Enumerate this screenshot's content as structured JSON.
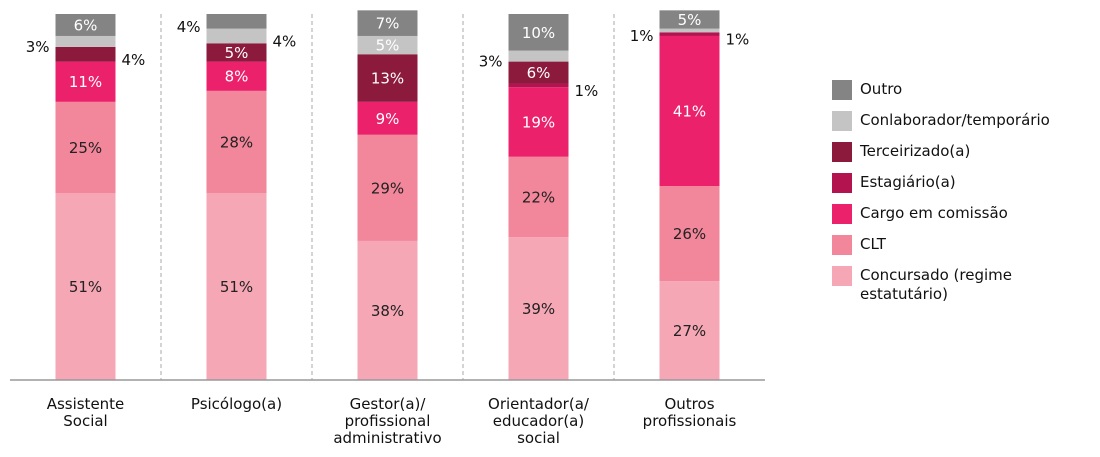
{
  "chart_data": {
    "type": "stacked_bar",
    "categories": [
      "Assistente\nSocial",
      "Psicólogo(a)",
      "Gestor(a)/\nprofissional\nadministrativo",
      "Orientador(a/\neducador(a)\nsocial",
      "Outros\nprofissionais"
    ],
    "ylim": [
      0,
      100
    ],
    "series": [
      {
        "name": "Concursado (regime estatutário)",
        "color": "#f6a7b5",
        "label_color": "#222",
        "values": [
          51,
          51,
          38,
          39,
          27
        ],
        "value_labels": [
          "51%",
          "51%",
          "38%",
          "39%",
          "27%"
        ]
      },
      {
        "name": "CLT",
        "color": "#f2869b",
        "label_color": "#222",
        "values": [
          25,
          28,
          29,
          22,
          26
        ],
        "value_labels": [
          "25%",
          "28%",
          "29%",
          "22%",
          "26%"
        ]
      },
      {
        "name": "Cargo em comissão",
        "color": "#ec216b",
        "label_color": "#fff",
        "values": [
          11,
          8,
          9,
          19,
          41
        ],
        "value_labels": [
          "11%",
          "8%",
          "9%",
          "19%",
          "41%"
        ]
      },
      {
        "name": "Estagiário(a)",
        "color": "#b3134f",
        "label_color": "#fff",
        "values": [
          null,
          null,
          null,
          1,
          1
        ],
        "value_labels": [
          null,
          null,
          null,
          "1%",
          "1%"
        ]
      },
      {
        "name": "Terceirizado(a)",
        "color": "#8c1a3d",
        "label_color": "#fff",
        "values": [
          4,
          5,
          13,
          6,
          null
        ],
        "value_labels": [
          "4%",
          "5%",
          "13%",
          "6%",
          null
        ]
      },
      {
        "name": "Conlaborador/temporário",
        "color": "#c4c4c4",
        "label_color": "#fff",
        "values": [
          3,
          4,
          5,
          3,
          1
        ],
        "value_labels": [
          "3%",
          "4%",
          "5%",
          "3%",
          "1%"
        ]
      },
      {
        "name": "Outro",
        "color": "#848484",
        "label_color": "#fff",
        "values": [
          6,
          4,
          7,
          10,
          5
        ],
        "value_labels": [
          "6%",
          "4%",
          "7%",
          "10%",
          "5%"
        ]
      }
    ]
  }
}
